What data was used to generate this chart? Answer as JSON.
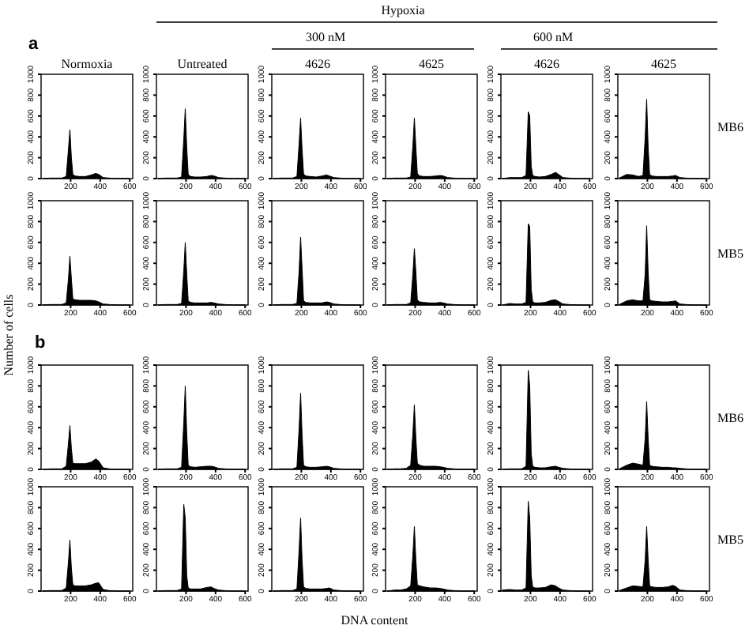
{
  "chart_data": [
    {
      "type": "area",
      "title": "Normoxia",
      "annotations": [
        "a",
        "Hypoxia",
        "300 nM",
        "600 nM",
        "Number of cells",
        "DNA content"
      ],
      "x": [
        10,
        60,
        100,
        140,
        170,
        185,
        195,
        205,
        215,
        230,
        260,
        300,
        340,
        370,
        390,
        420,
        460,
        520,
        600
      ],
      "values": [
        0,
        5,
        5,
        5,
        20,
        280,
        470,
        200,
        40,
        25,
        20,
        20,
        35,
        50,
        40,
        10,
        5,
        0,
        0
      ],
      "color": "#000000",
      "xlim": [
        0,
        620
      ],
      "xticks": [
        200,
        400,
        600
      ],
      "ylim": [
        0,
        1000
      ],
      "yticks": [
        0,
        200,
        400,
        600,
        800,
        1000
      ]
    },
    {
      "type": "area",
      "title": "Untreated",
      "x": [
        10,
        60,
        100,
        140,
        170,
        185,
        195,
        205,
        215,
        230,
        260,
        300,
        340,
        370,
        390,
        420,
        460,
        520,
        600
      ],
      "values": [
        0,
        5,
        5,
        5,
        15,
        380,
        670,
        300,
        40,
        20,
        15,
        15,
        20,
        30,
        25,
        10,
        5,
        0,
        0
      ],
      "color": "#000000",
      "xlim": [
        0,
        620
      ],
      "xticks": [
        200,
        400,
        600
      ],
      "ylim": [
        0,
        1000
      ],
      "yticks": [
        0,
        200,
        400,
        600,
        800,
        1000
      ]
    },
    {
      "type": "area",
      "title": "4626",
      "x": [
        10,
        60,
        100,
        140,
        170,
        185,
        195,
        205,
        215,
        230,
        260,
        300,
        340,
        370,
        390,
        420,
        460,
        520,
        600
      ],
      "values": [
        0,
        5,
        5,
        5,
        20,
        340,
        580,
        280,
        45,
        25,
        20,
        15,
        25,
        35,
        25,
        10,
        5,
        0,
        0
      ],
      "color": "#000000",
      "xlim": [
        0,
        620
      ],
      "xticks": [
        200,
        400,
        600
      ],
      "ylim": [
        0,
        1000
      ],
      "yticks": [
        0,
        200,
        400,
        600,
        800,
        1000
      ]
    },
    {
      "type": "area",
      "title": "4625",
      "x": [
        10,
        60,
        100,
        140,
        170,
        185,
        195,
        205,
        215,
        230,
        260,
        300,
        340,
        370,
        390,
        420,
        460,
        520,
        600
      ],
      "values": [
        0,
        5,
        5,
        5,
        15,
        320,
        580,
        300,
        50,
        25,
        20,
        20,
        25,
        30,
        25,
        10,
        5,
        0,
        0
      ],
      "color": "#000000",
      "xlim": [
        0,
        620
      ],
      "xticks": [
        200,
        400,
        600
      ],
      "ylim": [
        0,
        1000
      ],
      "yticks": [
        0,
        200,
        400,
        600,
        800,
        1000
      ]
    },
    {
      "type": "area",
      "title": "4626",
      "x": [
        10,
        60,
        100,
        140,
        170,
        185,
        195,
        205,
        215,
        230,
        260,
        300,
        340,
        370,
        390,
        420,
        460,
        520,
        600
      ],
      "values": [
        0,
        10,
        10,
        10,
        30,
        640,
        600,
        120,
        30,
        20,
        15,
        20,
        40,
        60,
        40,
        10,
        5,
        0,
        0
      ],
      "color": "#000000",
      "xlim": [
        0,
        620
      ],
      "xticks": [
        200,
        400,
        600
      ],
      "ylim": [
        0,
        1000
      ],
      "yticks": [
        0,
        200,
        400,
        600,
        800,
        1000
      ]
    },
    {
      "type": "area",
      "title": "4625",
      "y2label": "MB6",
      "x": [
        10,
        60,
        100,
        140,
        170,
        185,
        195,
        205,
        215,
        230,
        260,
        300,
        340,
        370,
        390,
        420,
        460,
        520,
        600
      ],
      "values": [
        5,
        40,
        35,
        20,
        30,
        400,
        760,
        300,
        40,
        25,
        20,
        20,
        20,
        25,
        30,
        10,
        5,
        0,
        0
      ],
      "color": "#000000",
      "xlim": [
        0,
        620
      ],
      "xticks": [
        200,
        400,
        600
      ],
      "ylim": [
        0,
        1000
      ],
      "yticks": [
        0,
        200,
        400,
        600,
        800,
        1000
      ]
    },
    {
      "type": "area",
      "x": [
        10,
        60,
        100,
        140,
        170,
        185,
        195,
        205,
        215,
        230,
        260,
        300,
        340,
        370,
        390,
        420,
        460,
        520,
        600
      ],
      "values": [
        0,
        5,
        5,
        5,
        20,
        250,
        470,
        250,
        60,
        50,
        45,
        45,
        45,
        40,
        30,
        10,
        5,
        0,
        0
      ],
      "color": "#000000",
      "xlim": [
        0,
        620
      ],
      "xticks": [
        200,
        400,
        600
      ],
      "ylim": [
        0,
        1000
      ],
      "yticks": [
        0,
        200,
        400,
        600,
        800,
        1000
      ]
    },
    {
      "type": "area",
      "x": [
        10,
        60,
        100,
        140,
        170,
        185,
        195,
        205,
        215,
        230,
        260,
        300,
        340,
        370,
        390,
        420,
        460,
        520,
        600
      ],
      "values": [
        0,
        5,
        5,
        5,
        15,
        330,
        600,
        300,
        40,
        25,
        20,
        20,
        20,
        25,
        20,
        10,
        5,
        0,
        0
      ],
      "color": "#000000",
      "xlim": [
        0,
        620
      ],
      "xticks": [
        200,
        400,
        600
      ],
      "ylim": [
        0,
        1000
      ],
      "yticks": [
        0,
        200,
        400,
        600,
        800,
        1000
      ]
    },
    {
      "type": "area",
      "x": [
        10,
        60,
        100,
        140,
        170,
        185,
        195,
        205,
        215,
        230,
        260,
        300,
        340,
        370,
        390,
        420,
        460,
        520,
        600
      ],
      "values": [
        0,
        5,
        5,
        5,
        15,
        330,
        650,
        350,
        40,
        25,
        20,
        20,
        20,
        30,
        25,
        10,
        5,
        0,
        0
      ],
      "color": "#000000",
      "xlim": [
        0,
        620
      ],
      "xticks": [
        200,
        400,
        600
      ],
      "ylim": [
        0,
        1000
      ],
      "yticks": [
        0,
        200,
        400,
        600,
        800,
        1000
      ]
    },
    {
      "type": "area",
      "x": [
        10,
        60,
        100,
        140,
        170,
        185,
        195,
        205,
        215,
        230,
        260,
        300,
        340,
        370,
        390,
        420,
        460,
        520,
        600
      ],
      "values": [
        0,
        5,
        5,
        5,
        20,
        300,
        540,
        320,
        50,
        30,
        25,
        20,
        20,
        25,
        20,
        10,
        5,
        0,
        0
      ],
      "color": "#000000",
      "xlim": [
        0,
        620
      ],
      "xticks": [
        200,
        400,
        600
      ],
      "ylim": [
        0,
        1000
      ],
      "yticks": [
        0,
        200,
        400,
        600,
        800,
        1000
      ]
    },
    {
      "type": "area",
      "x": [
        10,
        60,
        100,
        140,
        170,
        185,
        195,
        205,
        215,
        230,
        260,
        300,
        340,
        370,
        390,
        420,
        460,
        520,
        600
      ],
      "values": [
        0,
        15,
        10,
        10,
        25,
        780,
        750,
        150,
        30,
        20,
        20,
        25,
        45,
        50,
        35,
        10,
        5,
        0,
        0
      ],
      "color": "#000000",
      "xlim": [
        0,
        620
      ],
      "xticks": [
        200,
        400,
        600
      ],
      "ylim": [
        0,
        1000
      ],
      "yticks": [
        0,
        200,
        400,
        600,
        800,
        1000
      ]
    },
    {
      "type": "area",
      "y2label": "MB5",
      "x": [
        10,
        60,
        100,
        140,
        170,
        185,
        195,
        205,
        215,
        230,
        260,
        300,
        340,
        370,
        390,
        420,
        460,
        520,
        600
      ],
      "values": [
        5,
        40,
        50,
        40,
        40,
        300,
        760,
        320,
        50,
        40,
        35,
        30,
        30,
        35,
        40,
        10,
        5,
        0,
        0
      ],
      "color": "#000000",
      "xlim": [
        0,
        620
      ],
      "xticks": [
        200,
        400,
        600
      ],
      "ylim": [
        0,
        1000
      ],
      "yticks": [
        0,
        200,
        400,
        600,
        800,
        1000
      ]
    },
    {
      "type": "area",
      "annotations": [
        "b"
      ],
      "x": [
        10,
        60,
        100,
        140,
        170,
        185,
        195,
        205,
        215,
        230,
        260,
        300,
        340,
        370,
        390,
        420,
        460,
        520,
        600
      ],
      "values": [
        0,
        5,
        5,
        5,
        30,
        250,
        420,
        200,
        60,
        55,
        55,
        55,
        70,
        100,
        80,
        15,
        5,
        0,
        0
      ],
      "color": "#000000",
      "xlim": [
        0,
        620
      ],
      "xticks": [
        200,
        400,
        600
      ],
      "ylim": [
        0,
        1000
      ],
      "yticks": [
        0,
        200,
        400,
        600,
        800,
        1000
      ]
    },
    {
      "type": "area",
      "x": [
        10,
        60,
        100,
        140,
        170,
        185,
        195,
        205,
        215,
        230,
        260,
        300,
        340,
        370,
        390,
        420,
        460,
        520,
        600
      ],
      "values": [
        0,
        5,
        5,
        5,
        20,
        450,
        800,
        350,
        40,
        25,
        20,
        25,
        30,
        30,
        25,
        10,
        5,
        0,
        0
      ],
      "color": "#000000",
      "xlim": [
        0,
        620
      ],
      "xticks": [
        200,
        400,
        600
      ],
      "ylim": [
        0,
        1000
      ],
      "yticks": [
        0,
        200,
        400,
        600,
        800,
        1000
      ]
    },
    {
      "type": "area",
      "x": [
        10,
        60,
        100,
        140,
        170,
        185,
        195,
        205,
        215,
        230,
        260,
        300,
        340,
        370,
        390,
        420,
        460,
        520,
        600
      ],
      "values": [
        0,
        5,
        5,
        5,
        20,
        400,
        730,
        330,
        40,
        25,
        20,
        20,
        25,
        30,
        25,
        10,
        5,
        0,
        0
      ],
      "color": "#000000",
      "xlim": [
        0,
        620
      ],
      "xticks": [
        200,
        400,
        600
      ],
      "ylim": [
        0,
        1000
      ],
      "yticks": [
        0,
        200,
        400,
        600,
        800,
        1000
      ]
    },
    {
      "type": "area",
      "x": [
        10,
        60,
        100,
        140,
        170,
        185,
        195,
        205,
        215,
        230,
        260,
        300,
        340,
        370,
        390,
        420,
        460,
        520,
        600
      ],
      "values": [
        0,
        5,
        5,
        10,
        40,
        350,
        620,
        300,
        60,
        40,
        30,
        30,
        30,
        25,
        20,
        10,
        5,
        0,
        0
      ],
      "color": "#000000",
      "xlim": [
        0,
        620
      ],
      "xticks": [
        200,
        400,
        600
      ],
      "ylim": [
        0,
        1000
      ],
      "yticks": [
        0,
        200,
        400,
        600,
        800,
        1000
      ]
    },
    {
      "type": "area",
      "x": [
        10,
        60,
        100,
        140,
        170,
        185,
        195,
        205,
        215,
        230,
        260,
        300,
        340,
        370,
        390,
        420,
        460,
        520,
        600
      ],
      "values": [
        0,
        5,
        5,
        5,
        30,
        950,
        800,
        150,
        30,
        20,
        15,
        15,
        25,
        30,
        20,
        10,
        5,
        0,
        0
      ],
      "color": "#000000",
      "xlim": [
        0,
        620
      ],
      "xticks": [
        200,
        400,
        600
      ],
      "ylim": [
        0,
        1000
      ],
      "yticks": [
        0,
        200,
        400,
        600,
        800,
        1000
      ]
    },
    {
      "type": "area",
      "y2label": "MB6",
      "x": [
        10,
        60,
        100,
        140,
        170,
        185,
        195,
        205,
        215,
        230,
        260,
        300,
        340,
        370,
        390,
        420,
        460,
        520,
        600
      ],
      "values": [
        5,
        40,
        60,
        50,
        40,
        300,
        650,
        300,
        40,
        30,
        25,
        20,
        20,
        15,
        15,
        10,
        5,
        0,
        0
      ],
      "color": "#000000",
      "xlim": [
        0,
        620
      ],
      "xticks": [
        200,
        400,
        600
      ],
      "ylim": [
        0,
        1000
      ],
      "yticks": [
        0,
        200,
        400,
        600,
        800,
        1000
      ]
    },
    {
      "type": "area",
      "x": [
        10,
        60,
        100,
        140,
        170,
        185,
        195,
        205,
        215,
        230,
        260,
        300,
        340,
        370,
        390,
        420,
        460,
        520,
        600
      ],
      "values": [
        0,
        5,
        5,
        5,
        30,
        280,
        490,
        220,
        60,
        50,
        50,
        50,
        60,
        75,
        80,
        15,
        5,
        0,
        0
      ],
      "color": "#000000",
      "xlim": [
        0,
        620
      ],
      "xticks": [
        200,
        400,
        600
      ],
      "ylim": [
        0,
        1000
      ],
      "yticks": [
        0,
        200,
        400,
        600,
        800,
        1000
      ]
    },
    {
      "type": "area",
      "x": [
        10,
        60,
        100,
        140,
        170,
        185,
        195,
        205,
        215,
        230,
        260,
        300,
        340,
        370,
        390,
        420,
        460,
        520,
        600
      ],
      "values": [
        0,
        5,
        5,
        5,
        20,
        830,
        700,
        150,
        30,
        20,
        20,
        20,
        35,
        40,
        25,
        10,
        5,
        0,
        0
      ],
      "color": "#000000",
      "xlim": [
        0,
        620
      ],
      "xticks": [
        200,
        400,
        600
      ],
      "ylim": [
        0,
        1000
      ],
      "yticks": [
        0,
        200,
        400,
        600,
        800,
        1000
      ]
    },
    {
      "type": "area",
      "x": [
        10,
        60,
        100,
        140,
        170,
        185,
        195,
        205,
        215,
        230,
        260,
        300,
        340,
        370,
        390,
        420,
        460,
        520,
        600
      ],
      "values": [
        0,
        5,
        5,
        5,
        20,
        400,
        700,
        300,
        40,
        25,
        20,
        20,
        20,
        25,
        30,
        10,
        5,
        0,
        0
      ],
      "color": "#000000",
      "xlim": [
        0,
        620
      ],
      "xticks": [
        200,
        400,
        600
      ],
      "ylim": [
        0,
        1000
      ],
      "yticks": [
        0,
        200,
        400,
        600,
        800,
        1000
      ]
    },
    {
      "type": "area",
      "x": [
        10,
        60,
        100,
        140,
        170,
        185,
        195,
        205,
        215,
        230,
        260,
        300,
        340,
        370,
        390,
        420,
        460,
        520,
        600
      ],
      "values": [
        0,
        10,
        10,
        20,
        50,
        350,
        620,
        300,
        60,
        50,
        40,
        30,
        30,
        25,
        20,
        10,
        5,
        0,
        0
      ],
      "color": "#000000",
      "xlim": [
        0,
        620
      ],
      "xticks": [
        200,
        400,
        600
      ],
      "ylim": [
        0,
        1000
      ],
      "yticks": [
        0,
        200,
        400,
        600,
        800,
        1000
      ]
    },
    {
      "type": "area",
      "x": [
        10,
        60,
        100,
        140,
        170,
        185,
        195,
        205,
        215,
        230,
        260,
        300,
        340,
        370,
        390,
        420,
        460,
        520,
        600
      ],
      "values": [
        10,
        15,
        10,
        10,
        30,
        860,
        700,
        150,
        40,
        30,
        30,
        35,
        60,
        50,
        30,
        10,
        5,
        0,
        0
      ],
      "color": "#000000",
      "xlim": [
        0,
        620
      ],
      "xticks": [
        200,
        400,
        600
      ],
      "ylim": [
        0,
        1000
      ],
      "yticks": [
        0,
        200,
        400,
        600,
        800,
        1000
      ]
    },
    {
      "type": "area",
      "y2label": "MB5",
      "x": [
        10,
        60,
        100,
        140,
        170,
        185,
        195,
        205,
        215,
        230,
        260,
        300,
        340,
        370,
        390,
        420,
        460,
        520,
        600
      ],
      "values": [
        5,
        30,
        50,
        45,
        40,
        300,
        620,
        300,
        50,
        40,
        35,
        35,
        40,
        55,
        45,
        10,
        5,
        0,
        0
      ],
      "color": "#000000",
      "xlim": [
        0,
        620
      ],
      "xticks": [
        200,
        400,
        600
      ],
      "ylim": [
        0,
        1000
      ],
      "yticks": [
        0,
        200,
        400,
        600,
        800,
        1000
      ]
    }
  ]
}
